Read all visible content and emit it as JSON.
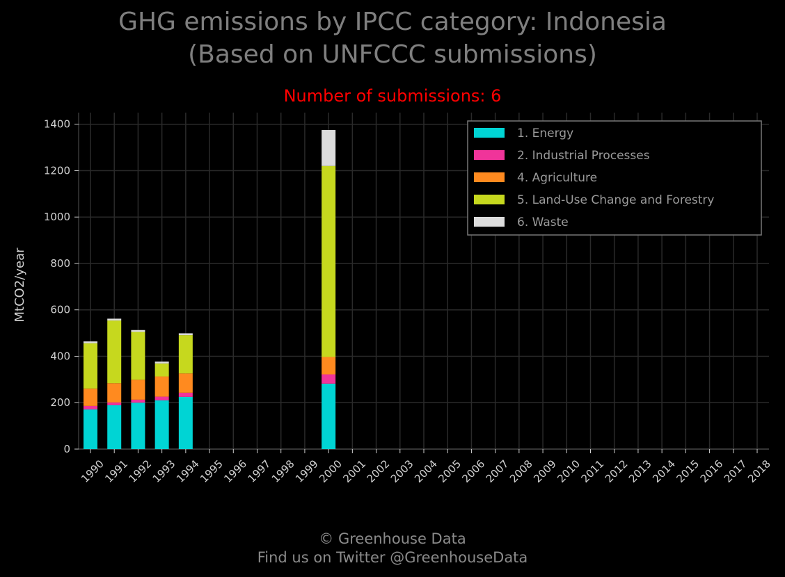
{
  "header": {
    "title_line1": "GHG emissions by IPCC category: Indonesia",
    "title_line2": "(Based on UNFCCC submissions)",
    "subtitle": "Number of submissions: 6"
  },
  "footer": {
    "line1": "© Greenhouse Data",
    "line2": "Find us on Twitter @GreenhouseData"
  },
  "chart_data": {
    "type": "bar",
    "stacked": true,
    "title": "GHG emissions by IPCC category: Indonesia (Based on UNFCCC submissions)",
    "subtitle": "Number of submissions: 6",
    "xlabel": "",
    "ylabel": "MtCO2/year",
    "ylim": [
      0,
      1450
    ],
    "yticks": [
      0,
      200,
      400,
      600,
      800,
      1000,
      1200,
      1400
    ],
    "grid": true,
    "legend_position": "top-right",
    "categories": [
      "1990",
      "1991",
      "1992",
      "1993",
      "1994",
      "1995",
      "1996",
      "1997",
      "1998",
      "1999",
      "2000",
      "2001",
      "2002",
      "2003",
      "2004",
      "2005",
      "2006",
      "2007",
      "2008",
      "2009",
      "2010",
      "2011",
      "2012",
      "2013",
      "2014",
      "2015",
      "2016",
      "2017",
      "2018"
    ],
    "series": [
      {
        "name": "1. Energy",
        "color": "#00d4d4",
        "values": [
          171,
          189,
          200,
          210,
          225,
          null,
          null,
          null,
          null,
          null,
          282,
          null,
          null,
          null,
          null,
          null,
          null,
          null,
          null,
          null,
          null,
          null,
          null,
          null,
          null,
          null,
          null,
          null,
          null
        ]
      },
      {
        "name": "2. Industrial Processes",
        "color": "#f0349a",
        "values": [
          15,
          12,
          13,
          16,
          18,
          null,
          null,
          null,
          null,
          null,
          40,
          null,
          null,
          null,
          null,
          null,
          null,
          null,
          null,
          null,
          null,
          null,
          null,
          null,
          null,
          null,
          null,
          null,
          null
        ]
      },
      {
        "name": "4. Agriculture",
        "color": "#ff8a1f",
        "values": [
          75,
          83,
          86,
          87,
          83,
          null,
          null,
          null,
          null,
          null,
          75,
          null,
          null,
          null,
          null,
          null,
          null,
          null,
          null,
          null,
          null,
          null,
          null,
          null,
          null,
          null,
          null,
          null,
          null
        ]
      },
      {
        "name": "5. Land-Use Change and Forestry",
        "color": "#c6d81e",
        "values": [
          195,
          270,
          206,
          56,
          165,
          null,
          null,
          null,
          null,
          null,
          823,
          null,
          null,
          null,
          null,
          null,
          null,
          null,
          null,
          null,
          null,
          null,
          null,
          null,
          null,
          null,
          null,
          null,
          null
        ]
      },
      {
        "name": "6. Waste",
        "color": "#dcdcdc",
        "values": [
          8,
          8,
          8,
          8,
          8,
          null,
          null,
          null,
          null,
          null,
          155,
          null,
          null,
          null,
          null,
          null,
          null,
          null,
          null,
          null,
          null,
          null,
          null,
          null,
          null,
          null,
          null,
          null,
          null
        ]
      }
    ]
  }
}
